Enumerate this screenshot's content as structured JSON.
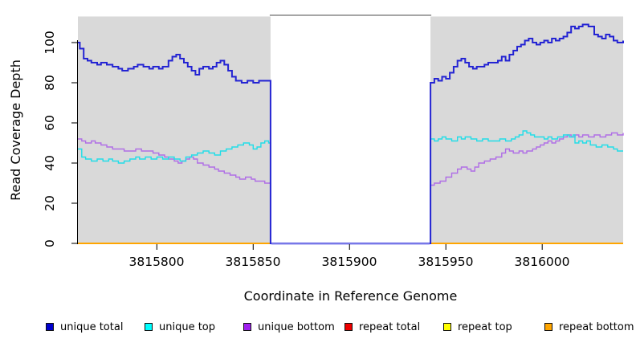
{
  "axes": {
    "ylabel": "Read Coverage Depth",
    "xlabel": "Coordinate in Reference Genome",
    "y_ticks": [
      "0",
      "20",
      "40",
      "60",
      "80",
      "100"
    ],
    "x_ticks": [
      "3815800",
      "3815850",
      "3815900",
      "3815950",
      "3816000"
    ]
  },
  "legend": {
    "items": [
      {
        "label": "unique total",
        "color": "#0000cd"
      },
      {
        "label": "unique top",
        "color": "#00ffff"
      },
      {
        "label": "unique bottom",
        "color": "#a020f0"
      },
      {
        "label": "repeat total",
        "color": "#ee0000"
      },
      {
        "label": "repeat top",
        "color": "#ffff00"
      },
      {
        "label": "repeat bottom",
        "color": "#ffa500"
      }
    ]
  },
  "chart_data": {
    "type": "line",
    "step": true,
    "title": "",
    "xlabel": "Coordinate in Reference Genome",
    "ylabel": "Read Coverage Depth",
    "xlim": [
      3815759,
      3816042
    ],
    "ylim": [
      0,
      113
    ],
    "x_tick_values": [
      3815800,
      3815850,
      3815900,
      3815950,
      3816000
    ],
    "y_tick_values": [
      0,
      20,
      40,
      60,
      80,
      100
    ],
    "grid": false,
    "legend_position": "bottom",
    "panel_color": "#d9d9d9",
    "shaded_regions": [
      [
        3815759,
        3815859
      ],
      [
        3815942,
        3816042
      ]
    ],
    "gap_region": [
      3815859,
      3815942
    ],
    "gap_top_border_color": "#a6a6a6",
    "gap_zero_line_color": "#8a8aec",
    "series": [
      {
        "name": "repeat total",
        "color": "#ee0000",
        "width": 1.5,
        "points": [
          [
            3815759,
            0
          ],
          [
            3816042,
            0
          ]
        ]
      },
      {
        "name": "repeat top",
        "color": "#ffff00",
        "width": 1.5,
        "points": [
          [
            3815759,
            0
          ],
          [
            3816042,
            0
          ]
        ]
      },
      {
        "name": "repeat bottom",
        "color": "#ffa500",
        "width": 2,
        "points": [
          [
            3815759,
            0
          ],
          [
            3816042,
            0
          ]
        ]
      },
      {
        "name": "unique bottom",
        "color": "#b06ee6",
        "width": 1.4,
        "points": [
          [
            3815759,
            52
          ],
          [
            3815761,
            51
          ],
          [
            3815763,
            50
          ],
          [
            3815766,
            51
          ],
          [
            3815768,
            50
          ],
          [
            3815771,
            49
          ],
          [
            3815774,
            48
          ],
          [
            3815777,
            47
          ],
          [
            3815780,
            47
          ],
          [
            3815783,
            46
          ],
          [
            3815786,
            46
          ],
          [
            3815789,
            47
          ],
          [
            3815792,
            46
          ],
          [
            3815795,
            46
          ],
          [
            3815798,
            45
          ],
          [
            3815801,
            44
          ],
          [
            3815804,
            43
          ],
          [
            3815806,
            42
          ],
          [
            3815809,
            41
          ],
          [
            3815811,
            40
          ],
          [
            3815813,
            41
          ],
          [
            3815815,
            42
          ],
          [
            3815817,
            43
          ],
          [
            3815819,
            42
          ],
          [
            3815821,
            40
          ],
          [
            3815824,
            39
          ],
          [
            3815827,
            38
          ],
          [
            3815830,
            37
          ],
          [
            3815832,
            36
          ],
          [
            3815835,
            35
          ],
          [
            3815838,
            34
          ],
          [
            3815841,
            33
          ],
          [
            3815843,
            32
          ],
          [
            3815846,
            33
          ],
          [
            3815849,
            32
          ],
          [
            3815851,
            31
          ],
          [
            3815854,
            31
          ],
          [
            3815856,
            30
          ],
          [
            3815858,
            30
          ],
          [
            3815859,
            0
          ],
          [
            3815942,
            0
          ],
          [
            3815942,
            29
          ],
          [
            3815944,
            30
          ],
          [
            3815947,
            31
          ],
          [
            3815950,
            33
          ],
          [
            3815953,
            35
          ],
          [
            3815956,
            37
          ],
          [
            3815958,
            38
          ],
          [
            3815961,
            37
          ],
          [
            3815963,
            36
          ],
          [
            3815965,
            38
          ],
          [
            3815967,
            40
          ],
          [
            3815970,
            41
          ],
          [
            3815973,
            42
          ],
          [
            3815976,
            43
          ],
          [
            3815979,
            45
          ],
          [
            3815981,
            47
          ],
          [
            3815983,
            46
          ],
          [
            3815985,
            45
          ],
          [
            3815988,
            46
          ],
          [
            3815990,
            45
          ],
          [
            3815992,
            46
          ],
          [
            3815995,
            47
          ],
          [
            3815997,
            48
          ],
          [
            3815999,
            49
          ],
          [
            3816001,
            50
          ],
          [
            3816003,
            51
          ],
          [
            3816005,
            50
          ],
          [
            3816007,
            51
          ],
          [
            3816009,
            52
          ],
          [
            3816011,
            53
          ],
          [
            3816013,
            54
          ],
          [
            3816015,
            53
          ],
          [
            3816017,
            54
          ],
          [
            3816019,
            53
          ],
          [
            3816021,
            54
          ],
          [
            3816024,
            53
          ],
          [
            3816027,
            54
          ],
          [
            3816030,
            53
          ],
          [
            3816033,
            54
          ],
          [
            3816036,
            55
          ],
          [
            3816039,
            54
          ],
          [
            3816042,
            55
          ]
        ]
      },
      {
        "name": "unique top",
        "color": "#21dde8",
        "width": 1.4,
        "points": [
          [
            3815759,
            47
          ],
          [
            3815761,
            43
          ],
          [
            3815763,
            42
          ],
          [
            3815766,
            41
          ],
          [
            3815769,
            42
          ],
          [
            3815772,
            41
          ],
          [
            3815775,
            42
          ],
          [
            3815777,
            41
          ],
          [
            3815780,
            40
          ],
          [
            3815783,
            41
          ],
          [
            3815786,
            42
          ],
          [
            3815789,
            43
          ],
          [
            3815791,
            42
          ],
          [
            3815794,
            43
          ],
          [
            3815797,
            42
          ],
          [
            3815800,
            43
          ],
          [
            3815803,
            42
          ],
          [
            3815806,
            43
          ],
          [
            3815809,
            42
          ],
          [
            3815812,
            41
          ],
          [
            3815815,
            43
          ],
          [
            3815818,
            44
          ],
          [
            3815821,
            45
          ],
          [
            3815824,
            46
          ],
          [
            3815827,
            45
          ],
          [
            3815830,
            44
          ],
          [
            3815833,
            46
          ],
          [
            3815836,
            47
          ],
          [
            3815839,
            48
          ],
          [
            3815842,
            49
          ],
          [
            3815845,
            50
          ],
          [
            3815848,
            49
          ],
          [
            3815850,
            47
          ],
          [
            3815852,
            48
          ],
          [
            3815854,
            50
          ],
          [
            3815856,
            51
          ],
          [
            3815858,
            50
          ],
          [
            3815859,
            0
          ],
          [
            3815942,
            0
          ],
          [
            3815942,
            52
          ],
          [
            3815944,
            51
          ],
          [
            3815946,
            52
          ],
          [
            3815948,
            53
          ],
          [
            3815950,
            52
          ],
          [
            3815953,
            51
          ],
          [
            3815956,
            53
          ],
          [
            3815958,
            52
          ],
          [
            3815960,
            53
          ],
          [
            3815963,
            52
          ],
          [
            3815966,
            51
          ],
          [
            3815969,
            52
          ],
          [
            3815972,
            51
          ],
          [
            3815975,
            51
          ],
          [
            3815978,
            52
          ],
          [
            3815981,
            51
          ],
          [
            3815984,
            52
          ],
          [
            3815986,
            53
          ],
          [
            3815988,
            54
          ],
          [
            3815990,
            56
          ],
          [
            3815992,
            55
          ],
          [
            3815994,
            54
          ],
          [
            3815996,
            53
          ],
          [
            3815999,
            53
          ],
          [
            3816001,
            52
          ],
          [
            3816003,
            53
          ],
          [
            3816005,
            52
          ],
          [
            3816008,
            53
          ],
          [
            3816011,
            54
          ],
          [
            3816014,
            53
          ],
          [
            3816016,
            54
          ],
          [
            3816017,
            50
          ],
          [
            3816019,
            51
          ],
          [
            3816021,
            50
          ],
          [
            3816023,
            51
          ],
          [
            3816025,
            49
          ],
          [
            3816028,
            48
          ],
          [
            3816031,
            49
          ],
          [
            3816034,
            48
          ],
          [
            3816037,
            47
          ],
          [
            3816039,
            46
          ],
          [
            3816042,
            46
          ]
        ]
      },
      {
        "name": "unique total",
        "color": "#2424d3",
        "width": 2,
        "points": [
          [
            3815759,
            100
          ],
          [
            3815760,
            97
          ],
          [
            3815762,
            92
          ],
          [
            3815764,
            91
          ],
          [
            3815766,
            90
          ],
          [
            3815769,
            89
          ],
          [
            3815771,
            90
          ],
          [
            3815774,
            89
          ],
          [
            3815777,
            88
          ],
          [
            3815780,
            87
          ],
          [
            3815782,
            86
          ],
          [
            3815785,
            87
          ],
          [
            3815788,
            88
          ],
          [
            3815790,
            89
          ],
          [
            3815793,
            88
          ],
          [
            3815796,
            87
          ],
          [
            3815798,
            88
          ],
          [
            3815801,
            87
          ],
          [
            3815803,
            88
          ],
          [
            3815806,
            91
          ],
          [
            3815808,
            93
          ],
          [
            3815810,
            94
          ],
          [
            3815812,
            92
          ],
          [
            3815814,
            90
          ],
          [
            3815816,
            88
          ],
          [
            3815818,
            86
          ],
          [
            3815820,
            84
          ],
          [
            3815822,
            87
          ],
          [
            3815824,
            88
          ],
          [
            3815827,
            87
          ],
          [
            3815829,
            88
          ],
          [
            3815831,
            90
          ],
          [
            3815833,
            91
          ],
          [
            3815835,
            89
          ],
          [
            3815837,
            86
          ],
          [
            3815839,
            83
          ],
          [
            3815841,
            81
          ],
          [
            3815844,
            80
          ],
          [
            3815847,
            81
          ],
          [
            3815850,
            80
          ],
          [
            3815853,
            81
          ],
          [
            3815856,
            81
          ],
          [
            3815858,
            81
          ],
          [
            3815859,
            0
          ],
          [
            3815942,
            0
          ],
          [
            3815942,
            80
          ],
          [
            3815944,
            82
          ],
          [
            3815946,
            81
          ],
          [
            3815948,
            83
          ],
          [
            3815950,
            82
          ],
          [
            3815952,
            85
          ],
          [
            3815954,
            88
          ],
          [
            3815956,
            91
          ],
          [
            3815958,
            92
          ],
          [
            3815960,
            90
          ],
          [
            3815962,
            88
          ],
          [
            3815964,
            87
          ],
          [
            3815966,
            88
          ],
          [
            3815968,
            88
          ],
          [
            3815970,
            89
          ],
          [
            3815972,
            90
          ],
          [
            3815975,
            90
          ],
          [
            3815977,
            91
          ],
          [
            3815979,
            93
          ],
          [
            3815981,
            91
          ],
          [
            3815983,
            94
          ],
          [
            3815985,
            96
          ],
          [
            3815987,
            98
          ],
          [
            3815989,
            99
          ],
          [
            3815991,
            101
          ],
          [
            3815993,
            102
          ],
          [
            3815995,
            100
          ],
          [
            3815997,
            99
          ],
          [
            3815999,
            100
          ],
          [
            3816001,
            101
          ],
          [
            3816003,
            100
          ],
          [
            3816005,
            102
          ],
          [
            3816007,
            101
          ],
          [
            3816009,
            102
          ],
          [
            3816011,
            103
          ],
          [
            3816013,
            105
          ],
          [
            3816015,
            108
          ],
          [
            3816017,
            107
          ],
          [
            3816019,
            108
          ],
          [
            3816021,
            109
          ],
          [
            3816024,
            108
          ],
          [
            3816027,
            104
          ],
          [
            3816029,
            103
          ],
          [
            3816031,
            102
          ],
          [
            3816033,
            104
          ],
          [
            3816035,
            103
          ],
          [
            3816037,
            101
          ],
          [
            3816039,
            100
          ],
          [
            3816042,
            101
          ]
        ]
      }
    ]
  }
}
